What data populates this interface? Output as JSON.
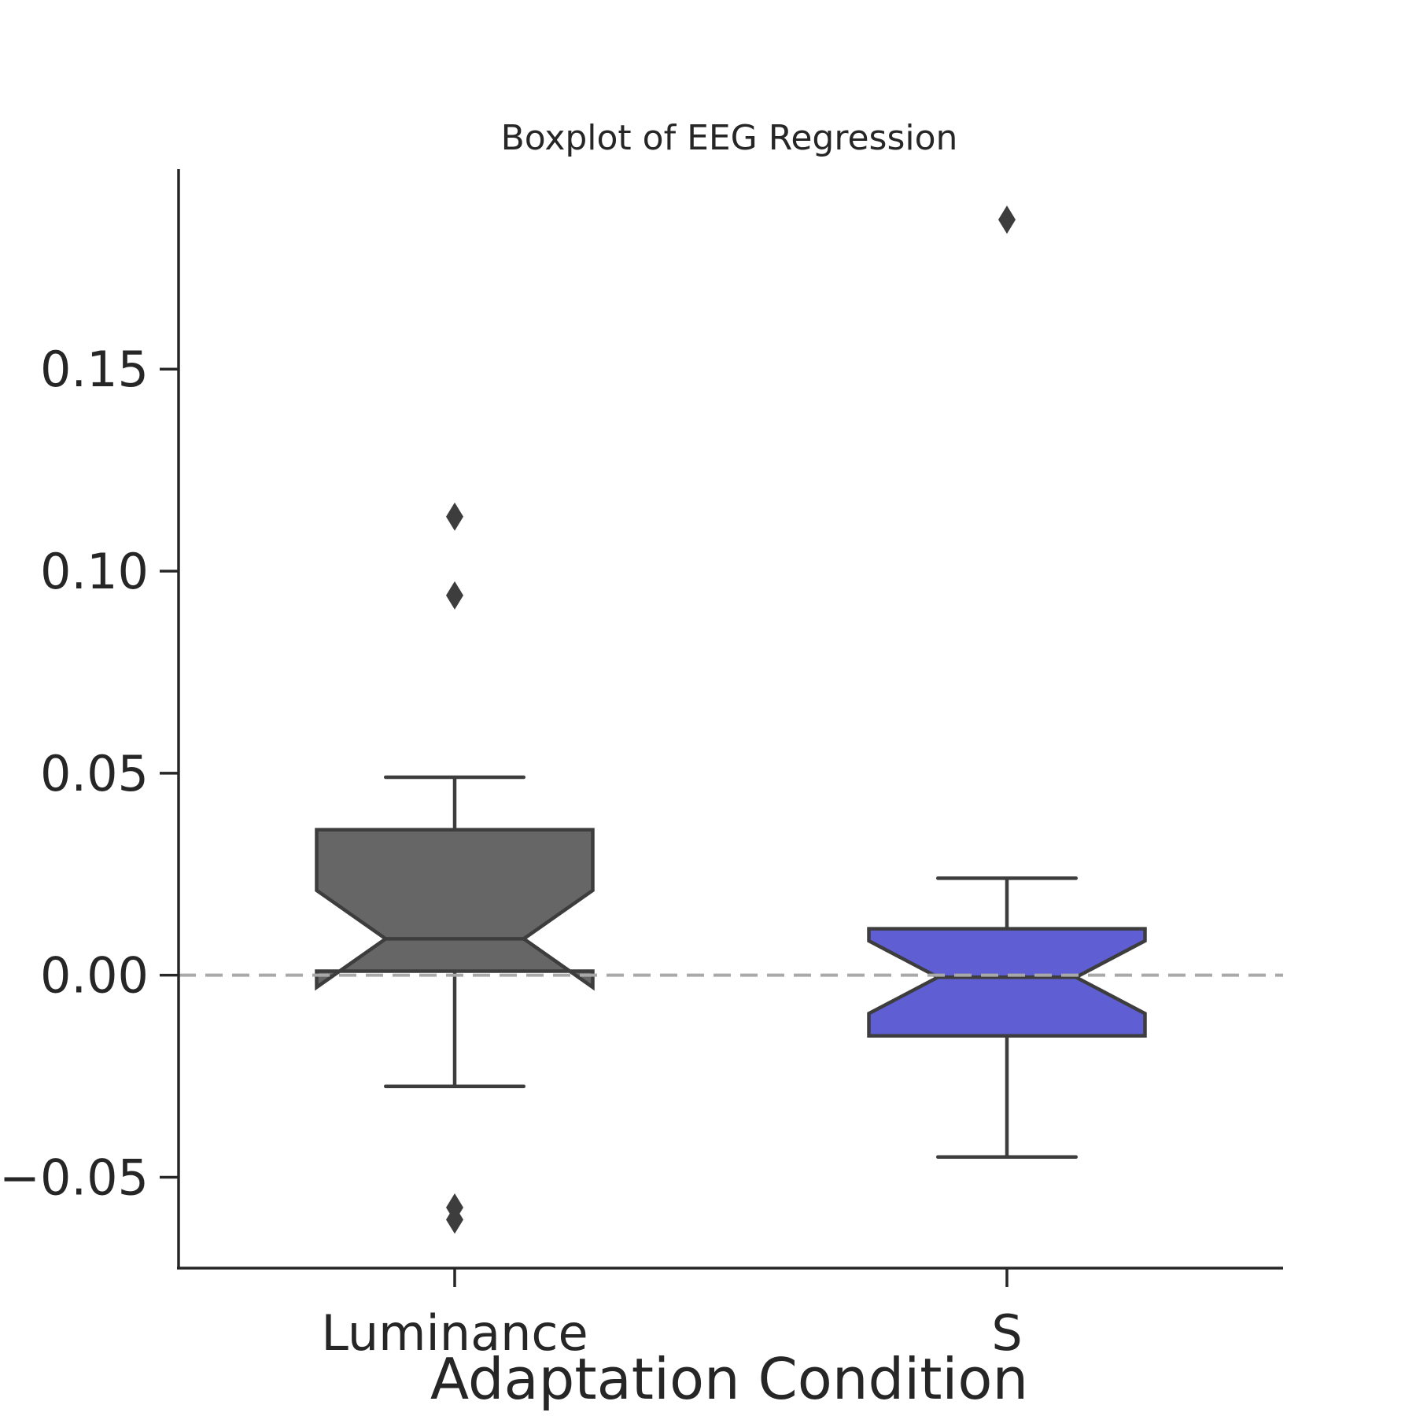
{
  "chart_data": {
    "type": "boxplot",
    "title": "Boxplot of EEG Regression",
    "xlabel": "Adaptation Condition",
    "ylabel": "",
    "categories": [
      "Luminance",
      "S"
    ],
    "ylim": [
      -0.0725,
      0.1995
    ],
    "yticks": [
      -0.05,
      0.0,
      0.05,
      0.1,
      0.15
    ],
    "ytick_labels": [
      "−0.05",
      "0.00",
      "0.05",
      "0.10",
      "0.15"
    ],
    "notched": true,
    "reference_line": {
      "y": 0.0,
      "style": "dashed",
      "color": "#a9a9a9"
    },
    "grid": false,
    "legend": "none",
    "boxes": [
      {
        "category": "Luminance",
        "color": "#666666",
        "whisker_low": -0.0275,
        "q1": 0.001,
        "median": 0.009,
        "q3": 0.036,
        "whisker_high": 0.049,
        "notch_low": -0.003,
        "notch_high": 0.021,
        "outliers": [
          0.1135,
          0.094,
          -0.0575,
          -0.0605
        ]
      },
      {
        "category": "S",
        "color": "#5f5fd3",
        "whisker_low": -0.045,
        "q1": -0.015,
        "median": -0.0005,
        "q3": 0.0115,
        "whisker_high": 0.024,
        "notch_low": -0.0095,
        "notch_high": 0.0085,
        "outliers": [
          0.187
        ]
      }
    ]
  }
}
